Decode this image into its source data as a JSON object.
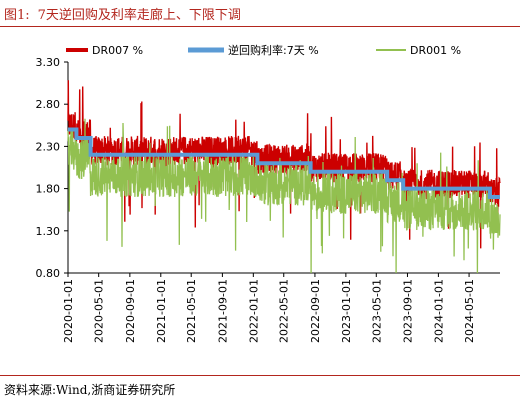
{
  "figure": {
    "number": "图1:",
    "title": "7天逆回购及利率走廊上、下限下调"
  },
  "source": "资料来源:Wind,浙商证券研究所",
  "chart_data": {
    "type": "line",
    "title": "7天逆回购及利率走廊上、下限下调",
    "xlabel": "",
    "ylabel": "",
    "ylim": [
      0.8,
      3.3
    ],
    "xlim": [
      "2020-01-01",
      "2024-08-31"
    ],
    "y_ticks": [
      "0.80",
      "1.30",
      "1.80",
      "2.30",
      "2.80",
      "3.30"
    ],
    "x_ticks": [
      "2020-01-01",
      "2020-05-01",
      "2020-09-01",
      "2021-01-01",
      "2021-05-01",
      "2021-09-01",
      "2022-01-01",
      "2022-05-01",
      "2022-09-01",
      "2023-01-01",
      "2023-05-01",
      "2023-09-01",
      "2024-01-01",
      "2024-05-01"
    ],
    "legend_position": "top",
    "series": [
      {
        "name": "DR007 %",
        "color": "#cc0000",
        "kind": "daily-line"
      },
      {
        "name": "逆回购利率:7天 %",
        "color": "#5b9bd5",
        "kind": "step",
        "steps": [
          {
            "from": "2020-01-01",
            "value": 2.5
          },
          {
            "from": "2020-02-03",
            "value": 2.4
          },
          {
            "from": "2020-03-30",
            "value": 2.2
          },
          {
            "from": "2022-01-17",
            "value": 2.1
          },
          {
            "from": "2022-08-15",
            "value": 2.0
          },
          {
            "from": "2023-06-13",
            "value": 1.9
          },
          {
            "from": "2023-08-15",
            "value": 1.8
          },
          {
            "from": "2024-07-22",
            "value": 1.7
          }
        ]
      },
      {
        "name": "DR001 %",
        "color": "#92c050",
        "kind": "daily-line"
      }
    ]
  }
}
